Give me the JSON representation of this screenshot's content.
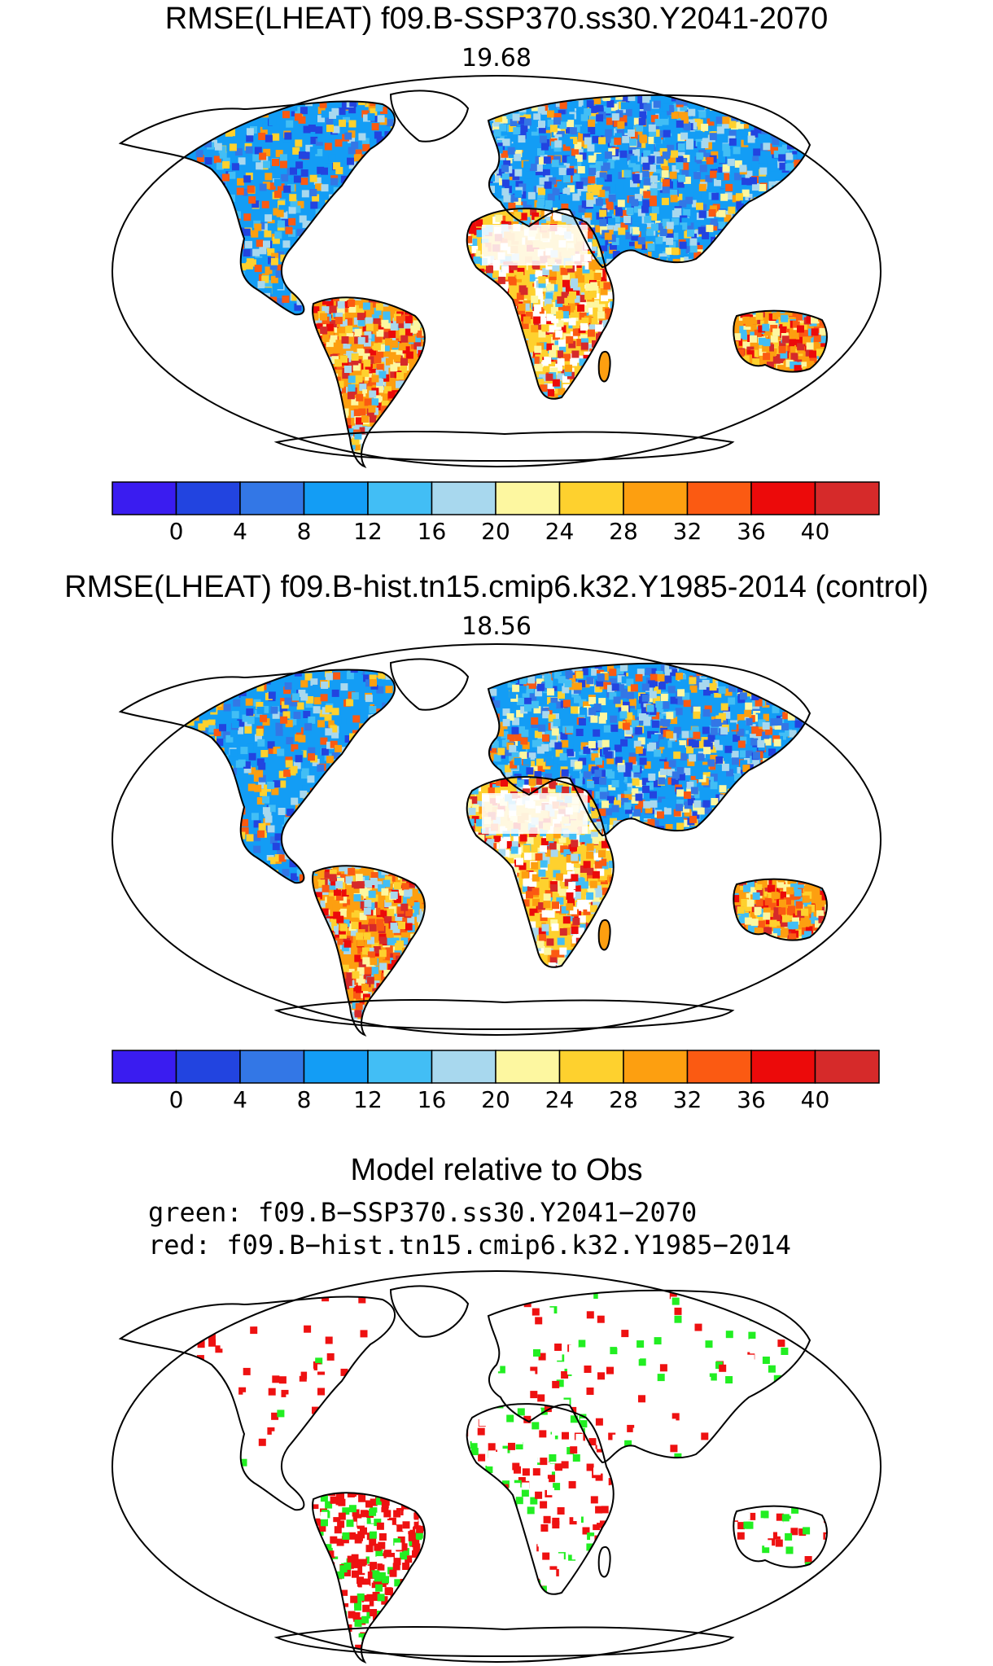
{
  "panels": [
    {
      "title": "RMSE(LHEAT) f09.B-SSP370.ss30.Y2041-2070",
      "score": "19.68"
    },
    {
      "title": "RMSE(LHEAT) f09.B-hist.tn15.cmip6.k32.Y1985-2014 (control)",
      "score": "18.56"
    }
  ],
  "colorbar": {
    "colors": [
      "#3a1cf0",
      "#2244e0",
      "#3377e6",
      "#139df5",
      "#42bef5",
      "#a8d8ee",
      "#fdf7a0",
      "#fed12e",
      "#fd9f10",
      "#fb5a12",
      "#ec0a0a",
      "#d62a2a"
    ],
    "tick_labels": [
      "0",
      "4",
      "8",
      "12",
      "16",
      "20",
      "24",
      "28",
      "32",
      "36",
      "40"
    ]
  },
  "comparison": {
    "title": "Model relative to Obs",
    "green_line": "green: f09.B−SSP370.ss30.Y2041−2070",
    "red_line": "red: f09.B−hist.tn15.cmip6.k32.Y1985−2014",
    "green_color": "#22ee22",
    "red_color": "#ee1111"
  }
}
